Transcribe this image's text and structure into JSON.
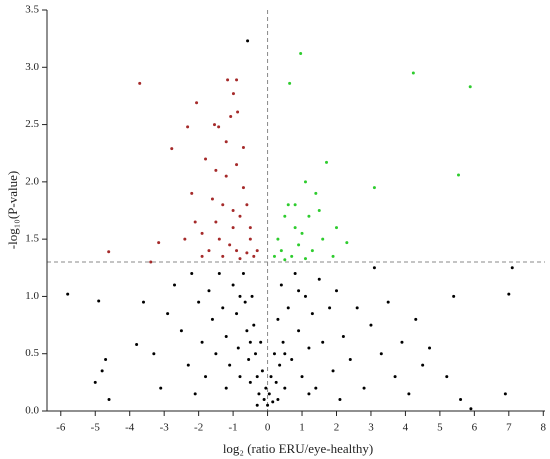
{
  "chart_data": {
    "type": "scatter",
    "x_label": "log₂ (ratio ERU/eye-healthy)",
    "y_label": "-log₁₀(P-value)",
    "xlim": [
      -6.4,
      8.05
    ],
    "ylim": [
      0,
      3.5
    ],
    "xticks": [
      -6,
      -5,
      -4,
      -3,
      -2,
      -1,
      0,
      1,
      2,
      3,
      4,
      5,
      6,
      7,
      8
    ],
    "yticks": [
      {
        "value": 0,
        "label": "0.0"
      },
      0.5,
      {
        "value": 1,
        "label": "1.0"
      },
      1.5,
      {
        "value": 2,
        "label": "2.0"
      },
      2.5,
      {
        "value": 3,
        "label": "3.0"
      },
      3.5
    ],
    "hline": 1.3,
    "vline": 0,
    "series": [
      {
        "color": "#a52a2a",
        "x": [
          -3.71,
          -2.06,
          -1.16,
          -0.9,
          -0.99,
          -2.32,
          -2.78,
          -1.54,
          -1.42,
          -1.07,
          -0.87,
          -3.16,
          -4.61,
          -3.39,
          -1.8,
          -1.5,
          -1.2,
          -0.9,
          -0.7,
          -1.6,
          -1.3,
          -1.0,
          -0.8,
          -0.5,
          -2.1,
          -1.9,
          -1.4,
          -1.1,
          -0.9,
          -0.6,
          -0.4,
          -1.7,
          -2.4,
          -1.3,
          -0.8,
          -1.0,
          -0.6,
          -1.5,
          -2.2,
          -0.7,
          -1.2,
          -0.5,
          -0.3,
          -1.9
        ],
        "y": [
          2.86,
          2.69,
          2.89,
          2.89,
          2.77,
          2.48,
          2.29,
          2.5,
          2.48,
          2.57,
          2.61,
          1.47,
          1.39,
          1.3,
          2.2,
          2.1,
          2.05,
          2.15,
          1.95,
          1.85,
          1.8,
          1.75,
          1.7,
          1.6,
          1.65,
          1.55,
          1.5,
          1.45,
          1.4,
          1.38,
          1.35,
          1.4,
          1.5,
          1.35,
          1.33,
          1.6,
          1.8,
          1.65,
          1.9,
          2.3,
          2.35,
          1.5,
          1.4,
          1.35
        ]
      },
      {
        "color": "#2ecc2e",
        "x": [
          0.96,
          0.64,
          4.23,
          5.88,
          5.54,
          3.1,
          1.71,
          1.1,
          0.3,
          0.5,
          0.6,
          0.8,
          1.0,
          1.2,
          1.5,
          0.4,
          0.7,
          0.9,
          1.3,
          1.6,
          2.3,
          1.9,
          0.5,
          1.1,
          2.0,
          0.2,
          1.4,
          0.8
        ],
        "y": [
          3.12,
          2.86,
          2.95,
          2.83,
          2.06,
          1.95,
          2.17,
          2.0,
          1.5,
          1.7,
          1.8,
          1.6,
          1.55,
          1.7,
          1.75,
          1.4,
          1.35,
          1.45,
          1.4,
          1.5,
          1.47,
          1.35,
          1.32,
          1.33,
          1.6,
          1.35,
          1.9,
          1.8
        ]
      },
      {
        "color": "#000000",
        "x": [
          -5.8,
          -4.9,
          -4.7,
          -4.8,
          -5.0,
          -4.6,
          -3.6,
          -3.8,
          -3.3,
          -3.1,
          -2.9,
          -2.7,
          -2.5,
          -2.3,
          -2.2,
          -2.0,
          -1.9,
          -1.8,
          -1.7,
          -1.6,
          -1.5,
          -1.4,
          -1.3,
          -1.2,
          -1.1,
          -1.0,
          -0.9,
          -0.85,
          -0.8,
          -0.7,
          -0.65,
          -0.6,
          -0.55,
          -0.5,
          -0.45,
          -0.4,
          -0.35,
          -0.3,
          -0.25,
          -0.2,
          -0.15,
          -0.1,
          -0.05,
          0,
          0.05,
          0.1,
          0.15,
          0.2,
          0.25,
          0.3,
          0.35,
          0.4,
          0.45,
          0.5,
          0.6,
          0.7,
          0.8,
          0.9,
          1.0,
          1.1,
          1.2,
          1.3,
          1.4,
          1.5,
          1.6,
          1.8,
          1.9,
          2.0,
          2.2,
          2.4,
          2.6,
          2.8,
          3.0,
          3.1,
          3.3,
          3.5,
          3.7,
          3.9,
          4.1,
          4.3,
          4.5,
          4.7,
          5.2,
          5.4,
          5.6,
          5.9,
          6.9,
          7.0,
          7.1,
          -0.58,
          -0.3,
          0.3,
          -0.5,
          0.5,
          -1.2,
          1.2,
          -2.1,
          2.1,
          -0.8,
          0.9
        ],
        "y": [
          1.02,
          0.96,
          0.45,
          0.35,
          0.25,
          0.1,
          0.95,
          0.58,
          0.5,
          0.2,
          0.85,
          1.1,
          0.7,
          0.4,
          1.2,
          0.95,
          0.6,
          0.3,
          1.05,
          0.8,
          0.5,
          1.2,
          0.9,
          0.65,
          0.4,
          1.1,
          0.85,
          0.55,
          0.3,
          1.2,
          0.95,
          0.7,
          0.45,
          0.25,
          1.0,
          0.75,
          0.5,
          0.3,
          0.15,
          0.6,
          0.35,
          0.1,
          0.2,
          0.05,
          0.15,
          0.3,
          0.08,
          0.5,
          0.25,
          0.8,
          0.4,
          1.1,
          0.6,
          0.2,
          0.9,
          0.45,
          1.2,
          0.7,
          0.3,
          1.0,
          0.55,
          0.85,
          0.2,
          1.15,
          0.6,
          0.9,
          0.35,
          1.05,
          0.65,
          0.45,
          0.9,
          0.2,
          0.75,
          1.25,
          0.5,
          0.95,
          0.3,
          0.6,
          0.15,
          0.8,
          0.4,
          0.55,
          0.3,
          1.0,
          0.1,
          0.02,
          0.15,
          1.02,
          1.25,
          3.23,
          0.05,
          0.1,
          0.6,
          0.5,
          0.2,
          0.15,
          0.15,
          0.1,
          1.0,
          1.05
        ]
      }
    ]
  }
}
